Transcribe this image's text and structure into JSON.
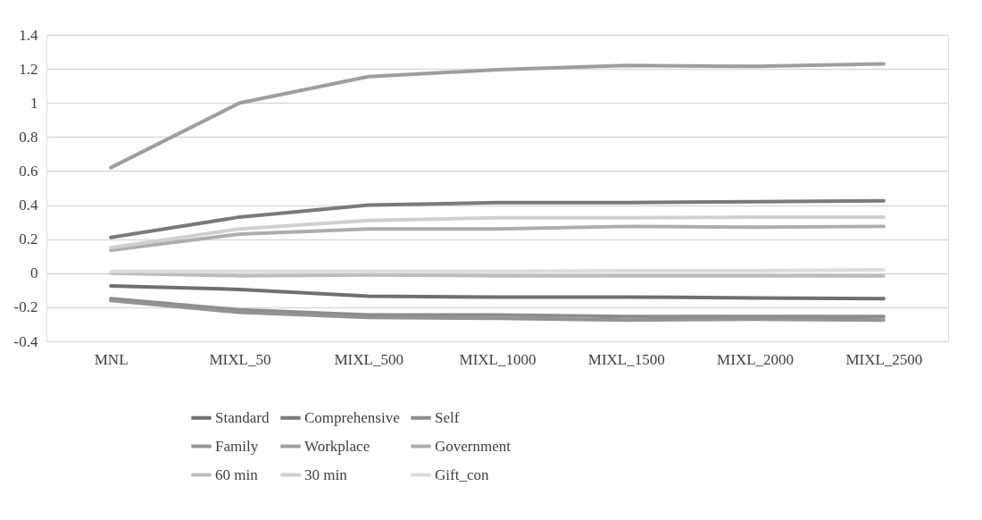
{
  "chart_data": {
    "type": "line",
    "categories": [
      "MNL",
      "MIXL_50",
      "MIXL_500",
      "MIXL_1000",
      "MIXL_1500",
      "MIXL_2000",
      "MIXL_2500"
    ],
    "ylim": [
      -0.4,
      1.4
    ],
    "yticks": [
      -0.4,
      -0.2,
      0,
      0.2,
      0.4,
      0.6,
      0.8,
      1,
      1.2,
      1.4
    ],
    "grid": "y",
    "legend": "bottom",
    "marker": "none",
    "line_style": "solid",
    "series": [
      {
        "name": "Standard",
        "color": "#6f6f6f",
        "values": [
          -0.075,
          -0.095,
          -0.135,
          -0.14,
          -0.14,
          -0.145,
          -0.15
        ]
      },
      {
        "name": "Comprehensive",
        "color": "#7a7a7a",
        "values": [
          0.21,
          0.33,
          0.4,
          0.415,
          0.415,
          0.42,
          0.425
        ]
      },
      {
        "name": "Self",
        "color": "#8c8c8c",
        "values": [
          -0.15,
          -0.215,
          -0.245,
          -0.245,
          -0.255,
          -0.255,
          -0.255
        ]
      },
      {
        "name": "Family",
        "color": "#939393",
        "values": [
          -0.16,
          -0.23,
          -0.26,
          -0.265,
          -0.275,
          -0.27,
          -0.275
        ]
      },
      {
        "name": "Workplace",
        "color": "#9e9e9e",
        "values": [
          0.62,
          1.0,
          1.155,
          1.195,
          1.22,
          1.215,
          1.23
        ]
      },
      {
        "name": "Government",
        "color": "#adadad",
        "values": [
          0.135,
          0.23,
          0.26,
          0.26,
          0.275,
          0.27,
          0.275
        ]
      },
      {
        "name": "60 min",
        "color": "#bdbdbd",
        "values": [
          0,
          -0.015,
          -0.01,
          -0.015,
          -0.015,
          -0.015,
          -0.015
        ]
      },
      {
        "name": "30 min",
        "color": "#cfcfcf",
        "values": [
          0.15,
          0.26,
          0.31,
          0.325,
          0.325,
          0.33,
          0.33
        ]
      },
      {
        "name": "Gift_con",
        "color": "#dcdcdc",
        "values": [
          0.01,
          0.01,
          0.01,
          0.01,
          0.015,
          0.015,
          0.02
        ]
      }
    ]
  }
}
